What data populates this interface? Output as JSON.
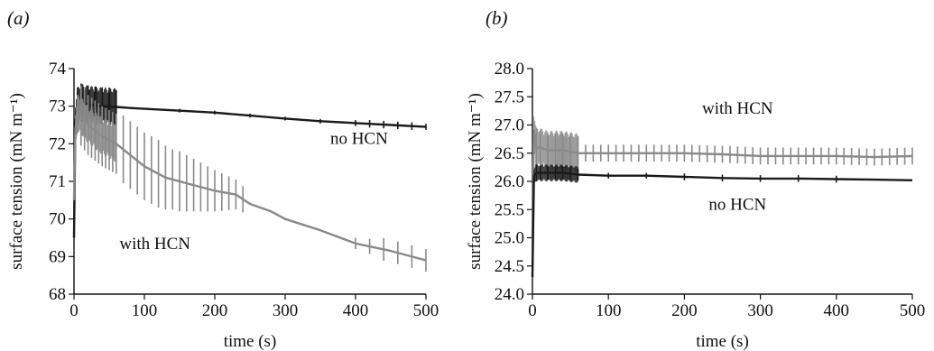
{
  "chart_data": [
    {
      "type": "line",
      "panel_label": "(a)",
      "xlabel": "time (s)",
      "ylabel": "surface tension (mN m⁻¹)",
      "xlim": [
        0,
        500
      ],
      "ylim": [
        68,
        74
      ],
      "xticks": [
        0,
        100,
        200,
        300,
        400,
        500
      ],
      "yticks": [
        68,
        69,
        70,
        71,
        72,
        73,
        74
      ],
      "grid": false,
      "annotations": [
        {
          "text": "no HCN",
          "x": 405,
          "y": 72.0
        },
        {
          "text": "with HCN",
          "x": 115,
          "y": 69.2
        }
      ],
      "series": [
        {
          "color": "#1a1a1a",
          "x": [
            0,
            2,
            5,
            10,
            20,
            40,
            60,
            80,
            100,
            130,
            160,
            200,
            250,
            300,
            350,
            400,
            450,
            500
          ],
          "y": [
            69.5,
            72.6,
            73.0,
            73.1,
            73.05,
            73.0,
            72.98,
            72.95,
            72.93,
            72.9,
            72.87,
            72.83,
            72.75,
            72.67,
            72.6,
            72.55,
            72.5,
            72.45
          ],
          "errorbars": {
            "x": [
              5,
              10,
              20,
              30,
              40,
              50,
              60,
              150,
              200,
              250,
              300,
              350,
              400,
              420,
              440,
              460,
              480,
              500
            ],
            "err": [
              0.5,
              0.5,
              0.5,
              0.5,
              0.5,
              0.5,
              0.45,
              0.05,
              0.05,
              0.05,
              0.05,
              0.06,
              0.08,
              0.1,
              0.1,
              0.1,
              0.1,
              0.08
            ]
          }
        },
        {
          "color": "#8a8a8a",
          "x": [
            0,
            2,
            5,
            10,
            20,
            40,
            60,
            80,
            100,
            130,
            160,
            200,
            230,
            250,
            280,
            300,
            350,
            400,
            450,
            500
          ],
          "y": [
            70.5,
            72.4,
            72.8,
            72.75,
            72.5,
            72.2,
            72.0,
            71.7,
            71.4,
            71.1,
            70.95,
            70.75,
            70.65,
            70.4,
            70.2,
            70.0,
            69.7,
            69.35,
            69.15,
            68.9
          ],
          "errorbars": {
            "x": [
              5,
              10,
              15,
              20,
              25,
              30,
              35,
              40,
              45,
              50,
              55,
              60,
              70,
              80,
              90,
              100,
              110,
              120,
              130,
              140,
              150,
              160,
              170,
              180,
              190,
              200,
              210,
              220,
              230,
              240,
              400,
              420,
              440,
              460,
              480,
              500
            ],
            "err": [
              0.5,
              0.8,
              0.8,
              0.8,
              0.8,
              0.8,
              0.8,
              0.8,
              0.8,
              0.8,
              0.8,
              0.8,
              0.9,
              0.9,
              0.9,
              0.9,
              0.9,
              0.9,
              0.85,
              0.8,
              0.8,
              0.75,
              0.7,
              0.65,
              0.6,
              0.55,
              0.5,
              0.45,
              0.4,
              0.35,
              0.15,
              0.2,
              0.3,
              0.3,
              0.3,
              0.3
            ]
          }
        }
      ]
    },
    {
      "type": "line",
      "panel_label": "(b)",
      "xlabel": "time (s)",
      "ylabel": "surface tension (mN m⁻¹)",
      "xlim": [
        0,
        500
      ],
      "ylim": [
        24.0,
        28.0
      ],
      "xticks": [
        0,
        100,
        200,
        300,
        400,
        500
      ],
      "yticks": [
        "24.0",
        "24.5",
        "25.0",
        "25.5",
        "26.0",
        "26.5",
        "27.0",
        "27.5",
        "28.0"
      ],
      "grid": false,
      "annotations": [
        {
          "text": "with HCN",
          "x": 270,
          "y": 27.2
        },
        {
          "text": "no HCN",
          "x": 270,
          "y": 25.5
        }
      ],
      "series": [
        {
          "color": "#8a8a8a",
          "x": [
            0,
            2,
            5,
            10,
            20,
            40,
            60,
            80,
            100,
            150,
            200,
            250,
            300,
            350,
            400,
            450,
            500
          ],
          "y": [
            25.0,
            26.9,
            26.6,
            26.6,
            26.55,
            26.55,
            26.5,
            26.5,
            26.5,
            26.5,
            26.5,
            26.48,
            26.45,
            26.45,
            26.45,
            26.43,
            26.45
          ],
          "errorbars": {
            "x": [
              5,
              10,
              20,
              30,
              40,
              50,
              60,
              70,
              80,
              90,
              100,
              110,
              120,
              130,
              140,
              150,
              160,
              170,
              180,
              190,
              200,
              210,
              220,
              230,
              240,
              250,
              260,
              270,
              280,
              290,
              300,
              310,
              320,
              330,
              340,
              350,
              360,
              370,
              380,
              390,
              400,
              410,
              420,
              430,
              440,
              450,
              460,
              470,
              480,
              490,
              500
            ],
            "err": [
              0.35,
              0.3,
              0.3,
              0.3,
              0.3,
              0.3,
              0.3,
              0.15,
              0.15,
              0.15,
              0.15,
              0.15,
              0.15,
              0.15,
              0.15,
              0.15,
              0.15,
              0.15,
              0.15,
              0.15,
              0.15,
              0.15,
              0.15,
              0.15,
              0.15,
              0.15,
              0.15,
              0.15,
              0.15,
              0.15,
              0.15,
              0.15,
              0.15,
              0.15,
              0.15,
              0.15,
              0.15,
              0.15,
              0.15,
              0.15,
              0.15,
              0.15,
              0.15,
              0.15,
              0.15,
              0.15,
              0.15,
              0.15,
              0.15,
              0.15,
              0.15
            ]
          }
        },
        {
          "color": "#1a1a1a",
          "x": [
            0,
            2,
            5,
            10,
            20,
            40,
            60,
            100,
            150,
            200,
            250,
            300,
            350,
            400,
            450,
            500
          ],
          "y": [
            24.3,
            26.1,
            26.15,
            26.15,
            26.15,
            26.15,
            26.12,
            26.1,
            26.1,
            26.08,
            26.06,
            26.05,
            26.05,
            26.04,
            26.03,
            26.02
          ],
          "errorbars": {
            "x": [
              5,
              10,
              20,
              30,
              40,
              50,
              60,
              100,
              150,
              200,
              250,
              300,
              350,
              400
            ],
            "err": [
              0.15,
              0.12,
              0.12,
              0.12,
              0.12,
              0.12,
              0.1,
              0.05,
              0.05,
              0.06,
              0.06,
              0.06,
              0.06,
              0.06
            ]
          }
        }
      ]
    }
  ]
}
